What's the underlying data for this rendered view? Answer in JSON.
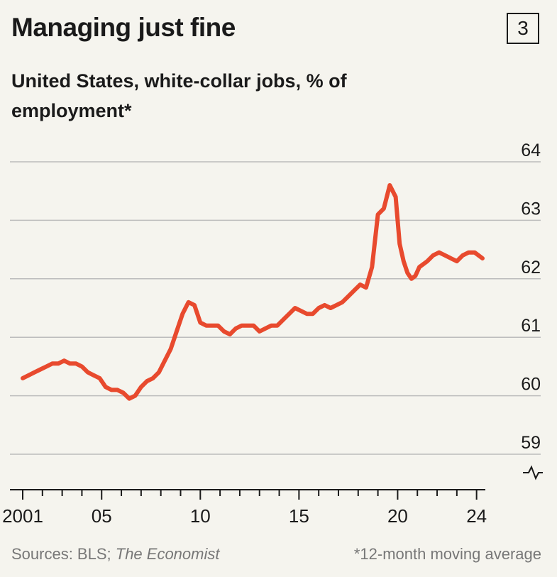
{
  "header": {
    "title": "Managing just fine",
    "badge": "3",
    "subtitle": "United States, white-collar jobs, % of employment*"
  },
  "footer": {
    "sources_prefix": "Sources: BLS; ",
    "sources_italic": "The Economist",
    "note": "*12-month moving average"
  },
  "colors": {
    "line": "#e84a2e",
    "grid": "#bcbcbc",
    "axis": "#1a1a1a",
    "background": "#f5f4ee"
  },
  "chart_data": {
    "type": "line",
    "title": "Managing just fine",
    "subtitle": "United States, white-collar jobs, % of employment*",
    "y_axis_position": "right",
    "y_axis_break": true,
    "ylim": [
      59,
      64
    ],
    "yticks": [
      "59",
      "60",
      "61",
      "62",
      "63",
      "64"
    ],
    "xlim": [
      2001,
      2024.3
    ],
    "xtick_labels": [
      {
        "x": 2001,
        "label": "2001"
      },
      {
        "x": 2005,
        "label": "05"
      },
      {
        "x": 2010,
        "label": "10"
      },
      {
        "x": 2015,
        "label": "15"
      },
      {
        "x": 2020,
        "label": "20"
      },
      {
        "x": 2024,
        "label": "24"
      }
    ],
    "grid": true,
    "series": [
      {
        "x": [
          2001.0,
          2001.3,
          2001.6,
          2001.9,
          2002.2,
          2002.5,
          2002.8,
          2003.1,
          2003.4,
          2003.7,
          2004.0,
          2004.3,
          2004.6,
          2004.9,
          2005.2,
          2005.5,
          2005.8,
          2006.1,
          2006.4,
          2006.7,
          2007.0,
          2007.3,
          2007.6,
          2007.9,
          2008.2,
          2008.5,
          2008.8,
          2009.1,
          2009.4,
          2009.7,
          2010.0,
          2010.3,
          2010.6,
          2010.9,
          2011.2,
          2011.5,
          2011.8,
          2012.1,
          2012.4,
          2012.7,
          2013.0,
          2013.3,
          2013.6,
          2013.9,
          2014.2,
          2014.5,
          2014.8,
          2015.1,
          2015.4,
          2015.7,
          2016.0,
          2016.3,
          2016.6,
          2016.9,
          2017.2,
          2017.5,
          2017.8,
          2018.1,
          2018.4,
          2018.7,
          2019.0,
          2019.3,
          2019.6,
          2019.9,
          2020.1,
          2020.3,
          2020.5,
          2020.7,
          2020.9,
          2021.1,
          2021.3,
          2021.5,
          2021.8,
          2022.1,
          2022.4,
          2022.7,
          2023.0,
          2023.3,
          2023.6,
          2023.9,
          2024.1,
          2024.3
        ],
        "y": [
          60.3,
          60.35,
          60.4,
          60.45,
          60.5,
          60.55,
          60.55,
          60.6,
          60.55,
          60.55,
          60.5,
          60.4,
          60.35,
          60.3,
          60.15,
          60.1,
          60.1,
          60.05,
          59.95,
          60.0,
          60.15,
          60.25,
          60.3,
          60.4,
          60.6,
          60.8,
          61.1,
          61.4,
          61.6,
          61.55,
          61.25,
          61.2,
          61.2,
          61.2,
          61.1,
          61.05,
          61.15,
          61.2,
          61.2,
          61.2,
          61.1,
          61.15,
          61.2,
          61.2,
          61.3,
          61.4,
          61.5,
          61.45,
          61.4,
          61.4,
          61.5,
          61.55,
          61.5,
          61.55,
          61.6,
          61.7,
          61.8,
          61.9,
          61.85,
          62.2,
          63.1,
          63.2,
          63.6,
          63.4,
          62.6,
          62.3,
          62.1,
          62.0,
          62.05,
          62.2,
          62.25,
          62.3,
          62.4,
          62.45,
          62.4,
          62.35,
          62.3,
          62.4,
          62.45,
          62.45,
          62.4,
          62.35
        ]
      }
    ],
    "sources": "Sources: BLS; The Economist",
    "note": "*12-month moving average"
  }
}
